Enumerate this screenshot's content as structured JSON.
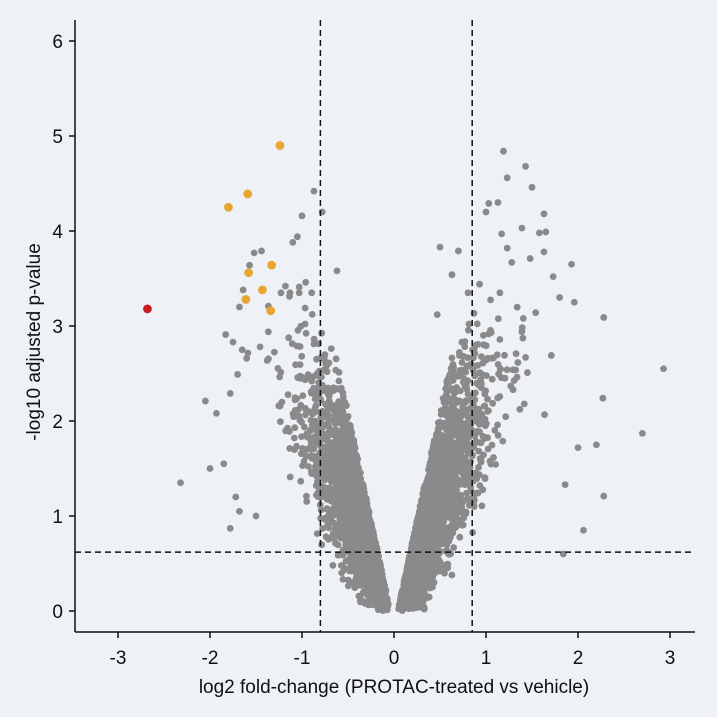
{
  "chart_data": {
    "type": "scatter",
    "title": "",
    "xlabel": "log2 fold-change (PROTAC-treated vs vehicle)",
    "ylabel": "-log10 adjusted p-value",
    "xlim": [
      -3.4,
      3.3
    ],
    "ylim": [
      -0.25,
      6.25
    ],
    "xticks": [
      -3,
      -2,
      -1,
      0,
      1,
      2,
      3
    ],
    "yticks": [
      0,
      1,
      2,
      3,
      4,
      5,
      6
    ],
    "thresholds": {
      "log2fc_low": -0.8,
      "log2fc_high": 0.85,
      "neg_log10_p": 0.62
    },
    "grid": false,
    "colors": {
      "background": "#eef1f6",
      "not_significant": "#8a8a8a",
      "highlight": "#e8a530",
      "top_hit": "#c81e22"
    },
    "background_points_total": 4200,
    "series": [
      {
        "color": "#8a8a8a",
        "points": [
          [
            -0.87,
            4.42
          ],
          [
            -0.78,
            4.2
          ],
          [
            -1.0,
            4.16
          ],
          [
            -1.05,
            3.94
          ],
          [
            -1.1,
            3.88
          ],
          [
            -0.62,
            3.58
          ],
          [
            -0.96,
            3.46
          ],
          [
            -1.03,
            3.41
          ],
          [
            -1.18,
            3.42
          ],
          [
            -1.52,
            3.77
          ],
          [
            -1.44,
            3.79
          ],
          [
            -1.57,
            3.64
          ],
          [
            -1.64,
            3.38
          ],
          [
            -1.68,
            3.2
          ],
          [
            -1.83,
            2.91
          ],
          [
            -1.75,
            2.83
          ],
          [
            -1.65,
            2.75
          ],
          [
            -1.7,
            2.49
          ],
          [
            -1.78,
            2.29
          ],
          [
            -1.93,
            2.08
          ],
          [
            -2.05,
            2.21
          ],
          [
            -2.0,
            1.5
          ],
          [
            -1.85,
            1.55
          ],
          [
            -1.72,
            1.2
          ],
          [
            -2.32,
            1.35
          ],
          [
            -1.78,
            0.87
          ],
          [
            -1.68,
            1.05
          ],
          [
            -1.5,
            1.0
          ],
          [
            0.5,
            3.83
          ],
          [
            0.7,
            3.79
          ],
          [
            0.63,
            3.54
          ],
          [
            0.93,
            3.44
          ],
          [
            0.47,
            3.12
          ],
          [
            1.03,
            4.29
          ],
          [
            1.0,
            4.2
          ],
          [
            1.13,
            4.3
          ],
          [
            1.19,
            4.84
          ],
          [
            1.23,
            4.56
          ],
          [
            1.43,
            4.68
          ],
          [
            1.5,
            4.46
          ],
          [
            1.63,
            4.18
          ],
          [
            1.58,
            3.98
          ],
          [
            1.39,
            4.03
          ],
          [
            1.65,
            3.99
          ],
          [
            1.63,
            3.78
          ],
          [
            1.73,
            3.52
          ],
          [
            1.8,
            3.3
          ],
          [
            1.93,
            3.65
          ],
          [
            1.96,
            3.25
          ],
          [
            2.28,
            3.09
          ],
          [
            2.93,
            2.55
          ],
          [
            2.7,
            1.87
          ],
          [
            2.27,
            2.24
          ],
          [
            2.28,
            1.21
          ],
          [
            2.0,
            1.72
          ],
          [
            2.06,
            0.85
          ],
          [
            1.84,
            0.6
          ],
          [
            1.86,
            1.33
          ],
          [
            2.2,
            1.75
          ],
          [
            1.48,
            3.71
          ],
          [
            1.28,
            3.67
          ],
          [
            1.23,
            3.82
          ],
          [
            1.17,
            3.97
          ],
          [
            0.89,
            2.8
          ],
          [
            1.71,
            2.69
          ],
          [
            1.54,
            3.14
          ],
          [
            1.45,
            2.51
          ]
        ]
      },
      {
        "color": "#e8a530",
        "points": [
          [
            -1.24,
            4.9
          ],
          [
            -1.59,
            4.39
          ],
          [
            -1.8,
            4.25
          ],
          [
            -1.33,
            3.64
          ],
          [
            -1.58,
            3.56
          ],
          [
            -1.61,
            3.28
          ],
          [
            -1.43,
            3.38
          ],
          [
            -1.34,
            3.16
          ]
        ]
      },
      {
        "color": "#c81e22",
        "points": [
          [
            -2.68,
            3.18
          ]
        ]
      }
    ]
  }
}
